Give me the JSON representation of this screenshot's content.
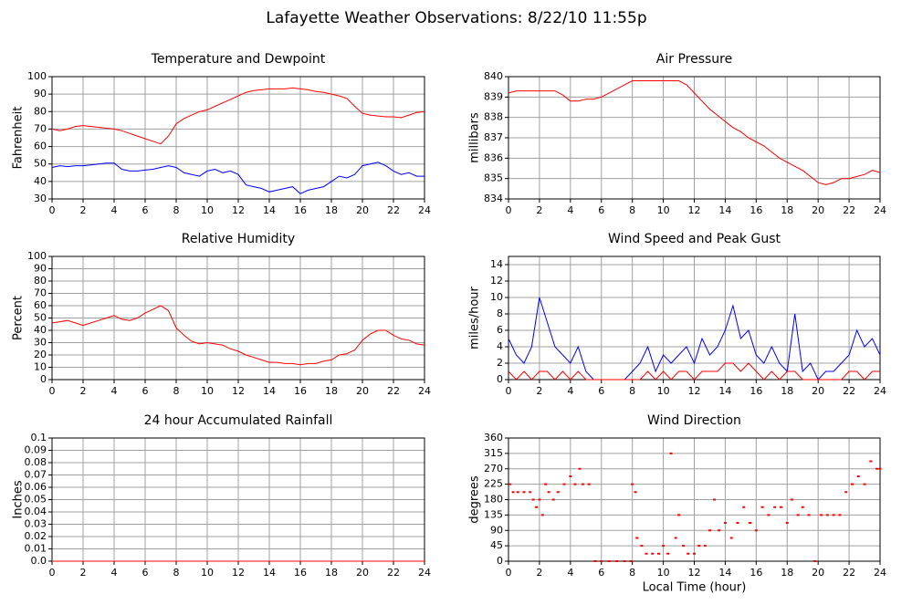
{
  "title": "Lafayette Weather Observations: 8/22/10 11:55p",
  "chart_data": [
    {
      "type": "line",
      "title": "Temperature and Dewpoint",
      "y_label": "Fahrenheit",
      "grid": true,
      "xlim": [
        0,
        24
      ],
      "xticks": [
        0,
        2,
        4,
        6,
        8,
        10,
        12,
        14,
        16,
        18,
        20,
        22,
        24
      ],
      "ylim": [
        30,
        100
      ],
      "yticks": [
        30,
        40,
        50,
        60,
        70,
        80,
        90,
        100
      ],
      "x": [
        0,
        0.5,
        1,
        1.5,
        2,
        2.5,
        3,
        3.5,
        4,
        4.5,
        5,
        5.5,
        6,
        6.5,
        7,
        7.5,
        8,
        8.5,
        9,
        9.5,
        10,
        10.5,
        11,
        11.5,
        12,
        12.5,
        13,
        13.5,
        14,
        14.5,
        15,
        15.5,
        16,
        16.5,
        17,
        17.5,
        18,
        18.5,
        19,
        19.5,
        20,
        20.5,
        21,
        21.5,
        22,
        22.5,
        23,
        23.5,
        24
      ],
      "series": [
        {
          "color": "#ff0000",
          "values": [
            70,
            69,
            70,
            71.5,
            72,
            71.5,
            71,
            70.5,
            70,
            69,
            67.5,
            66,
            64.5,
            63,
            61.5,
            66,
            73,
            76,
            78,
            80,
            81,
            83,
            85,
            87,
            89,
            91,
            92,
            92.5,
            93,
            93,
            93,
            93.5,
            93,
            92.5,
            91.5,
            91,
            90,
            89,
            87.5,
            83,
            79,
            78,
            77.5,
            77,
            77,
            76.5,
            78,
            79.5,
            80
          ]
        },
        {
          "color": "#0000ff",
          "values": [
            48,
            49,
            48.5,
            49,
            49,
            49.5,
            50,
            50.5,
            50.5,
            47,
            46,
            46,
            46.5,
            47,
            48,
            49,
            48,
            45,
            44,
            43,
            46,
            47,
            45,
            46,
            44,
            38,
            37,
            36,
            34,
            35,
            36,
            37,
            33,
            35,
            36,
            37,
            40,
            43,
            42,
            44,
            49,
            50,
            51,
            49,
            46,
            44,
            45,
            43,
            43
          ]
        }
      ]
    },
    {
      "type": "line",
      "title": "Air Pressure",
      "y_label": "millibars",
      "grid": true,
      "xlim": [
        0,
        24
      ],
      "xticks": [
        0,
        2,
        4,
        6,
        8,
        10,
        12,
        14,
        16,
        18,
        20,
        22,
        24
      ],
      "ylim": [
        834,
        840
      ],
      "yticks": [
        834,
        835,
        836,
        837,
        838,
        839,
        840
      ],
      "x": [
        0,
        0.5,
        1,
        1.5,
        2,
        2.5,
        3,
        3.5,
        4,
        4.5,
        5,
        5.5,
        6,
        6.5,
        7,
        7.5,
        8,
        8.5,
        9,
        9.5,
        10,
        10.5,
        11,
        11.5,
        12,
        12.5,
        13,
        13.5,
        14,
        14.5,
        15,
        15.5,
        16,
        16.5,
        17,
        17.5,
        18,
        18.5,
        19,
        19.5,
        20,
        20.5,
        21,
        21.5,
        22,
        22.5,
        23,
        23.5,
        24
      ],
      "series": [
        {
          "color": "#ff0000",
          "values": [
            839.2,
            839.3,
            839.3,
            839.3,
            839.3,
            839.3,
            839.3,
            839.1,
            838.8,
            838.8,
            838.9,
            838.9,
            839.0,
            839.2,
            839.4,
            839.6,
            839.8,
            839.8,
            839.8,
            839.8,
            839.8,
            839.8,
            839.8,
            839.6,
            839.2,
            838.8,
            838.4,
            838.1,
            837.8,
            837.5,
            837.3,
            837.0,
            836.8,
            836.6,
            836.3,
            836.0,
            835.8,
            835.6,
            835.4,
            835.1,
            834.8,
            834.7,
            834.8,
            835.0,
            835.0,
            835.1,
            835.2,
            835.4,
            835.3
          ]
        }
      ]
    },
    {
      "type": "line",
      "title": "Relative Humidity",
      "y_label": "Percent",
      "grid": true,
      "xlim": [
        0,
        24
      ],
      "xticks": [
        0,
        2,
        4,
        6,
        8,
        10,
        12,
        14,
        16,
        18,
        20,
        22,
        24
      ],
      "ylim": [
        0,
        100
      ],
      "yticks": [
        0,
        10,
        20,
        30,
        40,
        50,
        60,
        70,
        80,
        90,
        100
      ],
      "x": [
        0,
        0.5,
        1,
        1.5,
        2,
        2.5,
        3,
        3.5,
        4,
        4.5,
        5,
        5.5,
        6,
        6.5,
        7,
        7.5,
        8,
        8.5,
        9,
        9.5,
        10,
        10.5,
        11,
        11.5,
        12,
        12.5,
        13,
        13.5,
        14,
        14.5,
        15,
        15.5,
        16,
        16.5,
        17,
        17.5,
        18,
        18.5,
        19,
        19.5,
        20,
        20.5,
        21,
        21.5,
        22,
        22.5,
        23,
        23.5,
        24
      ],
      "series": [
        {
          "color": "#ff0000",
          "values": [
            46,
            47,
            48,
            46,
            44,
            46,
            48,
            50,
            52,
            49,
            48,
            50,
            54,
            57,
            60,
            56,
            42,
            36,
            31,
            29,
            30,
            29,
            28,
            25,
            23,
            20,
            18,
            16,
            14,
            14,
            13,
            13,
            12,
            13,
            13,
            15,
            16,
            20,
            21,
            24,
            32,
            37,
            40,
            40,
            36,
            33,
            32,
            29,
            28
          ]
        }
      ]
    },
    {
      "type": "line",
      "title": "Wind Speed and Peak Gust",
      "y_label": "miles/hour",
      "grid": true,
      "xlim": [
        0,
        24
      ],
      "xticks": [
        0,
        2,
        4,
        6,
        8,
        10,
        12,
        14,
        16,
        18,
        20,
        22,
        24
      ],
      "ylim": [
        0,
        15
      ],
      "yticks": [
        0,
        2,
        4,
        6,
        8,
        10,
        12,
        14
      ],
      "x": [
        0,
        0.5,
        1,
        1.5,
        2,
        2.5,
        3,
        3.5,
        4,
        4.5,
        5,
        5.5,
        6,
        6.5,
        7,
        7.5,
        8,
        8.5,
        9,
        9.5,
        10,
        10.5,
        11,
        11.5,
        12,
        12.5,
        13,
        13.5,
        14,
        14.5,
        15,
        15.5,
        16,
        16.5,
        17,
        17.5,
        18,
        18.5,
        19,
        19.5,
        20,
        20.5,
        21,
        21.5,
        22,
        22.5,
        23,
        23.5,
        24
      ],
      "series": [
        {
          "color": "#0000ff",
          "values": [
            5,
            3,
            2,
            4,
            10,
            7,
            4,
            3,
            2,
            4,
            1,
            0,
            0,
            0,
            0,
            0,
            1,
            2,
            4,
            1,
            3,
            2,
            3,
            4,
            2,
            5,
            3,
            4,
            6,
            9,
            5,
            6,
            3,
            2,
            4,
            2,
            1,
            8,
            1,
            2,
            0,
            1,
            1,
            2,
            3,
            6,
            4,
            5,
            3
          ]
        },
        {
          "color": "#ff0000",
          "values": [
            1,
            0,
            1,
            0,
            1,
            1,
            0,
            1,
            0,
            1,
            0,
            0,
            0,
            0,
            0,
            0,
            0,
            0,
            1,
            0,
            1,
            0,
            1,
            1,
            0,
            1,
            1,
            1,
            2,
            2,
            1,
            2,
            1,
            0,
            1,
            0,
            1,
            1,
            0,
            0,
            0,
            0,
            0,
            0,
            1,
            1,
            0,
            1,
            1
          ]
        }
      ]
    },
    {
      "type": "line",
      "title": "24 hour Accumulated Rainfall",
      "y_label": "Inches",
      "grid": true,
      "xlim": [
        0,
        24
      ],
      "xticks": [
        0,
        2,
        4,
        6,
        8,
        10,
        12,
        14,
        16,
        18,
        20,
        22,
        24
      ],
      "ylim": [
        0,
        0.1
      ],
      "yticks": [
        {
          "value": 0,
          "label": "0.0"
        },
        0.01,
        0.02,
        0.03,
        0.04,
        0.05,
        0.06,
        0.07,
        0.08,
        0.09,
        0.1
      ],
      "x": [
        0,
        24
      ],
      "series": [
        {
          "color": "#ff0000",
          "values": [
            0,
            0
          ]
        }
      ]
    },
    {
      "type": "scatter",
      "title": "Wind Direction",
      "y_label": "degrees",
      "x_label": "Local Time (hour)",
      "grid": true,
      "xlim": [
        0,
        24
      ],
      "xticks": [
        0,
        2,
        4,
        6,
        8,
        10,
        12,
        14,
        16,
        18,
        20,
        22,
        24
      ],
      "ylim": [
        0,
        360
      ],
      "yticks": [
        0,
        45,
        90,
        135,
        180,
        225,
        270,
        315,
        360
      ],
      "x": [
        0.1,
        0.3,
        0.6,
        1.0,
        1.4,
        1.6,
        1.8,
        2.0,
        2.2,
        2.4,
        2.6,
        2.9,
        3.2,
        3.6,
        4.0,
        4.3,
        4.6,
        4.8,
        5.2,
        5.6,
        6.0,
        6.5,
        7.0,
        7.5,
        7.9,
        8.0,
        8.2,
        8.3,
        8.6,
        8.9,
        9.3,
        9.7,
        10.0,
        10.3,
        10.5,
        10.8,
        11.0,
        11.3,
        11.6,
        12.0,
        12.3,
        12.7,
        13.0,
        13.3,
        13.6,
        14.0,
        14.4,
        14.8,
        15.2,
        15.6,
        16.0,
        16.4,
        16.8,
        17.2,
        17.6,
        18.0,
        18.3,
        18.7,
        19.0,
        19.4,
        19.8,
        20.2,
        20.6,
        21.0,
        21.4,
        21.8,
        22.2,
        22.6,
        23.0,
        23.4,
        23.8,
        24.0
      ],
      "series": [
        {
          "color": "#ff0000",
          "values": [
            225,
            202,
            202,
            202,
            202,
            180,
            158,
            180,
            135,
            225,
            202,
            180,
            202,
            225,
            248,
            225,
            270,
            225,
            225,
            0,
            0,
            0,
            0,
            0,
            0,
            225,
            202,
            68,
            45,
            22,
            22,
            22,
            45,
            22,
            315,
            68,
            135,
            45,
            22,
            22,
            45,
            45,
            90,
            180,
            90,
            112,
            68,
            112,
            158,
            112,
            90,
            158,
            135,
            158,
            158,
            112,
            180,
            135,
            158,
            135,
            0,
            135,
            135,
            135,
            135,
            202,
            225,
            248,
            225,
            292,
            270,
            270
          ]
        }
      ]
    }
  ]
}
